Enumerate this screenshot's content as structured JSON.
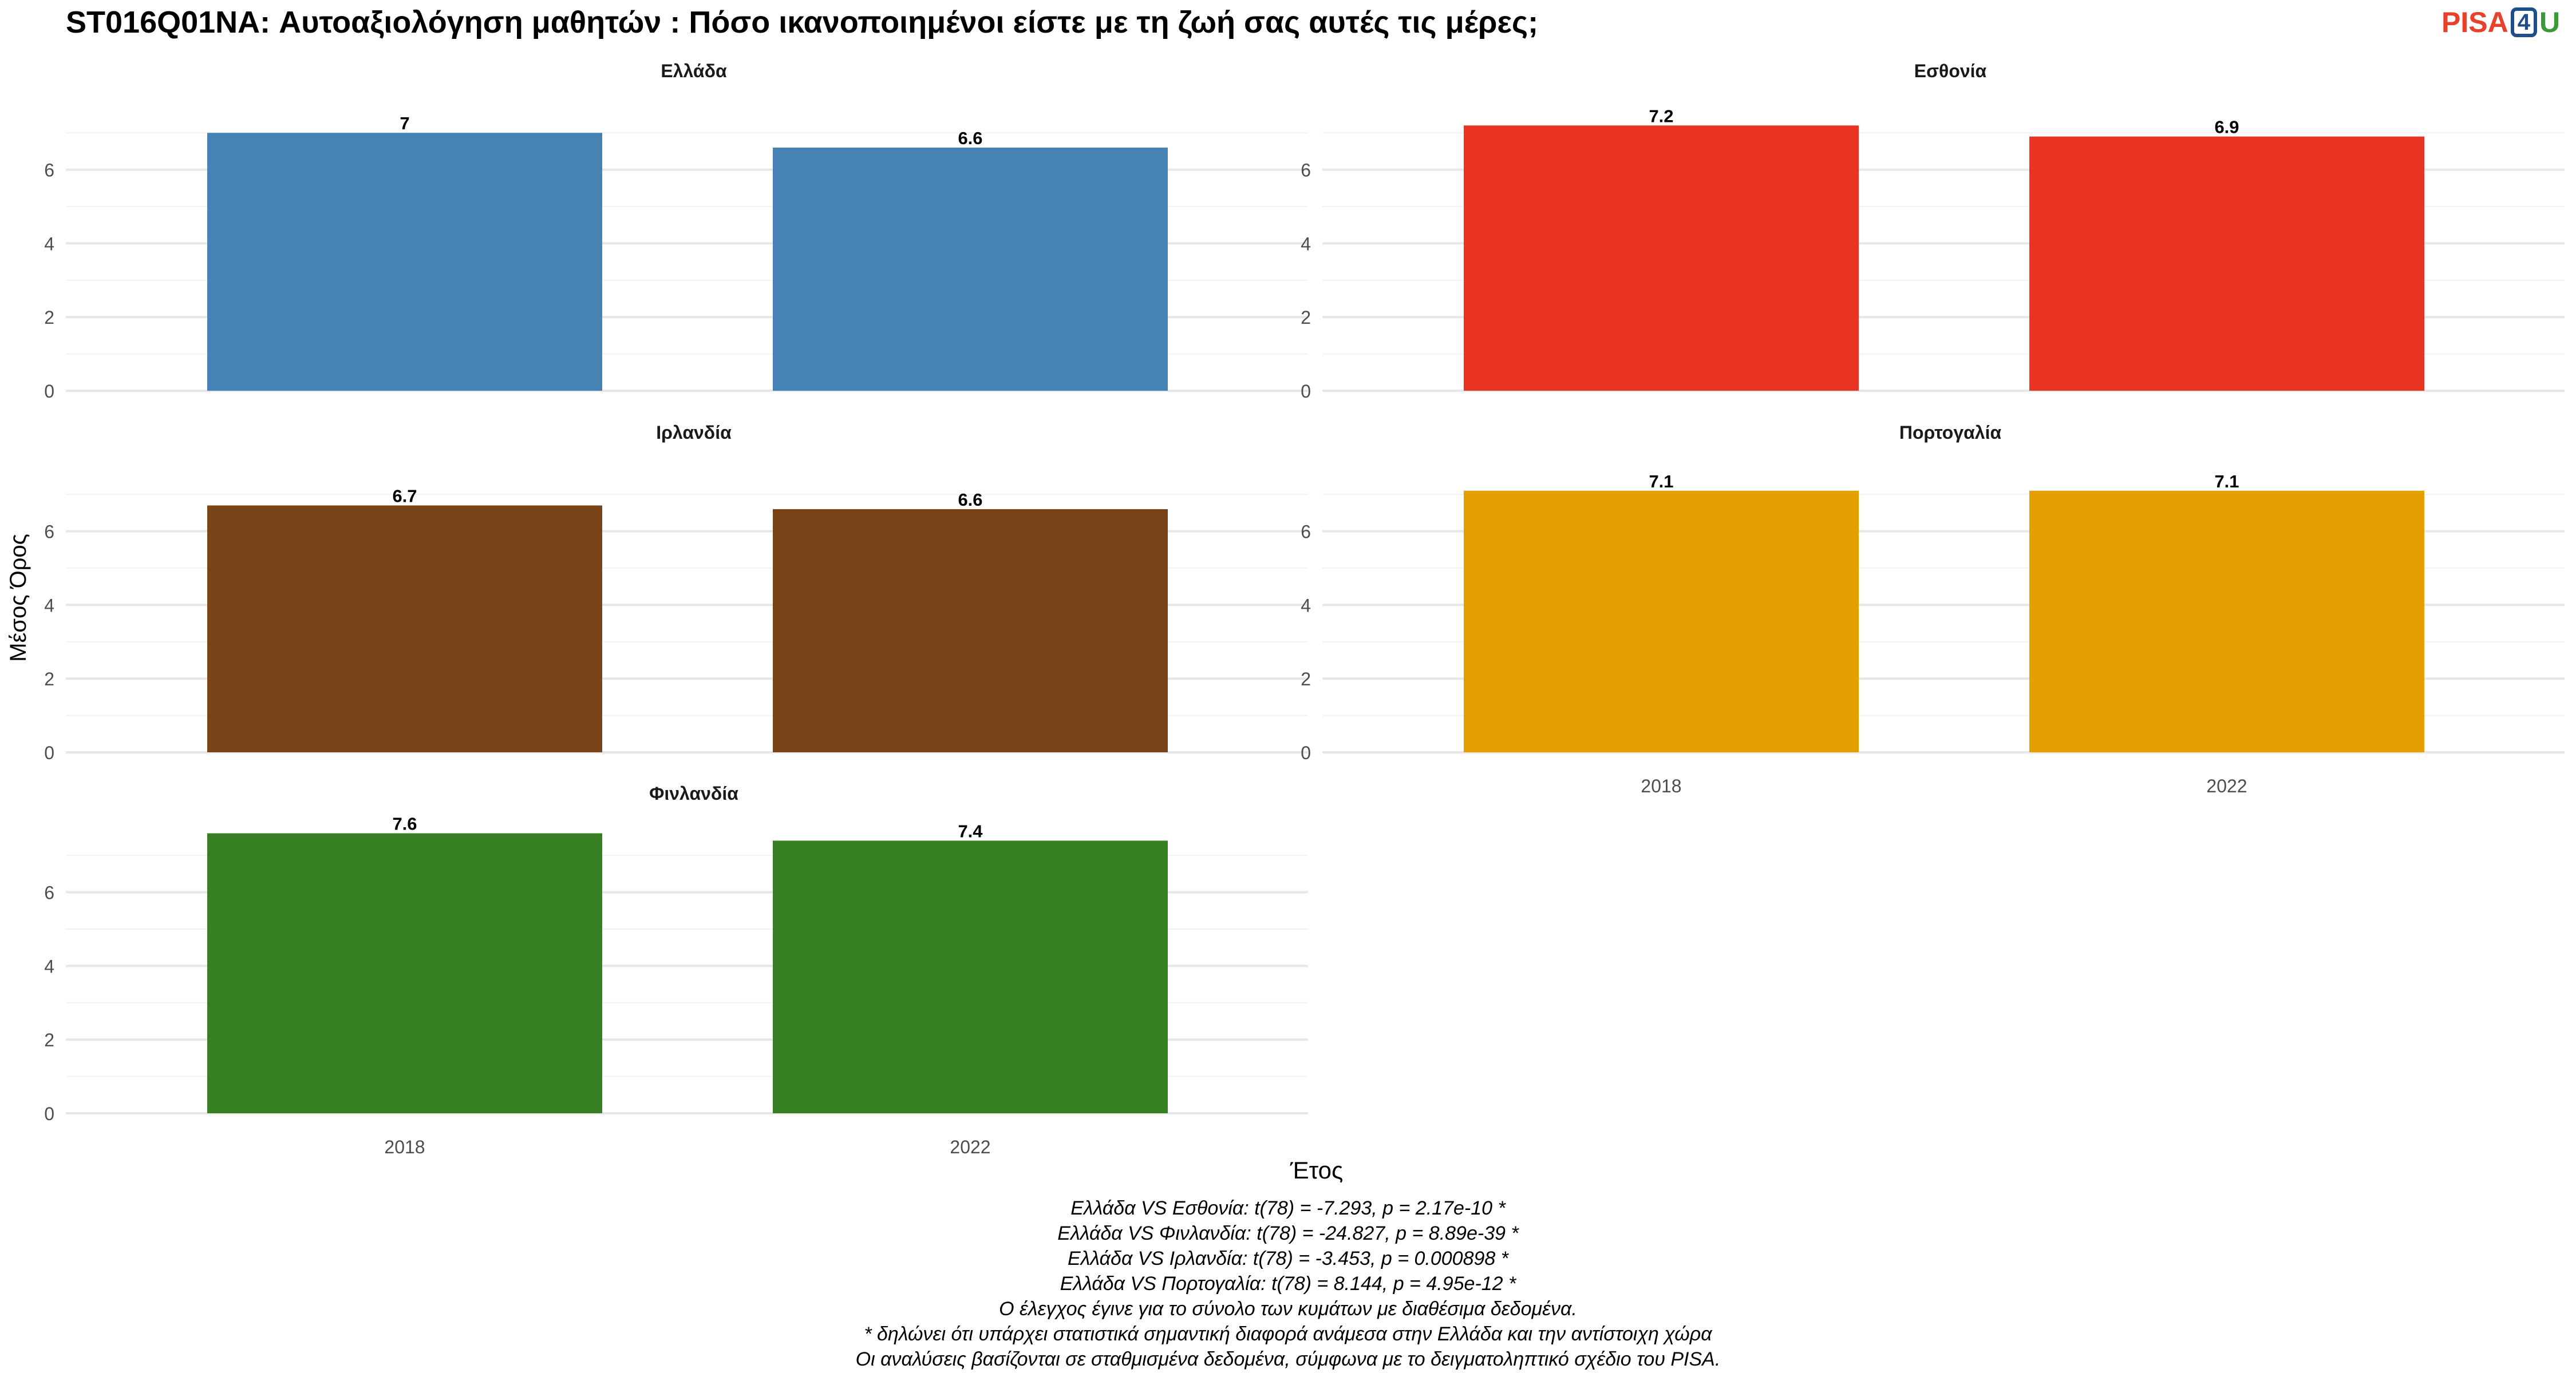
{
  "title": "ST016Q01NA: Αυτοαξιολόγηση μαθητών : Πόσο ικανοποιημένοι είστε με τη ζωή σας αυτές τις μέρες;",
  "logo": {
    "part1": "PISA",
    "part2": "4",
    "part3": "U"
  },
  "ylabel": "Μέσος Όρος",
  "xlabel": "Έτος",
  "chart_data": [
    {
      "type": "bar",
      "title": "Ελλάδα",
      "categories": [
        "2018",
        "2022"
      ],
      "values": [
        7.0,
        6.6
      ],
      "labels": [
        "7",
        "6.6"
      ],
      "color": "#4682b4",
      "ylim": [
        0,
        7.9
      ],
      "yticks": [
        0,
        2,
        4,
        6
      ],
      "grid": true
    },
    {
      "type": "bar",
      "title": "Εσθονία",
      "categories": [
        "2018",
        "2022"
      ],
      "values": [
        7.2,
        6.9
      ],
      "labels": [
        "7.2",
        "6.9"
      ],
      "color": "#e93424",
      "ylim": [
        0,
        7.9
      ],
      "yticks": [
        0,
        2,
        4,
        6
      ],
      "grid": true
    },
    {
      "type": "bar",
      "title": "Ιρλανδία",
      "categories": [
        "2018",
        "2022"
      ],
      "values": [
        6.7,
        6.6
      ],
      "labels": [
        "6.7",
        "6.6"
      ],
      "color": "#784418",
      "ylim": [
        0,
        7.9
      ],
      "yticks": [
        0,
        2,
        4,
        6
      ],
      "grid": true
    },
    {
      "type": "bar",
      "title": "Πορτογαλία",
      "categories": [
        "2018",
        "2022"
      ],
      "values": [
        7.1,
        7.1
      ],
      "labels": [
        "7.1",
        "7.1"
      ],
      "color": "#e5a000",
      "ylim": [
        0,
        7.9
      ],
      "yticks": [
        0,
        2,
        4,
        6
      ],
      "grid": true
    },
    {
      "type": "bar",
      "title": "Φινλανδία",
      "categories": [
        "2018",
        "2022"
      ],
      "values": [
        7.6,
        7.4
      ],
      "labels": [
        "7.6",
        "7.4"
      ],
      "color": "#367f23",
      "ylim": [
        0,
        7.9
      ],
      "yticks": [
        0,
        2,
        4,
        6
      ],
      "grid": true
    }
  ],
  "notes": [
    "Ελλάδα VS Εσθονία: t(78) = -7.293, p = 2.17e-10 *",
    "Ελλάδα VS Φινλανδία: t(78) = -24.827, p = 8.89e-39 *",
    "Ελλάδα VS Ιρλανδία: t(78) = -3.453, p = 0.000898 *",
    "Ελλάδα VS Πορτογαλία: t(78) = 8.144, p = 4.95e-12 *",
    "Ο έλεγχος έγινε για το σύνολο των κυμάτων με διαθέσιμα δεδομένα.",
    "* δηλώνει ότι υπάρχει στατιστικά σημαντική διαφορά ανάμεσα στην Ελλάδα και την αντίστοιχη χώρα",
    "Οι αναλύσεις βασίζονται σε σταθμισμένα δεδομένα, σύμφωνα με το δειγματοληπτικό σχέδιο του PISA."
  ]
}
